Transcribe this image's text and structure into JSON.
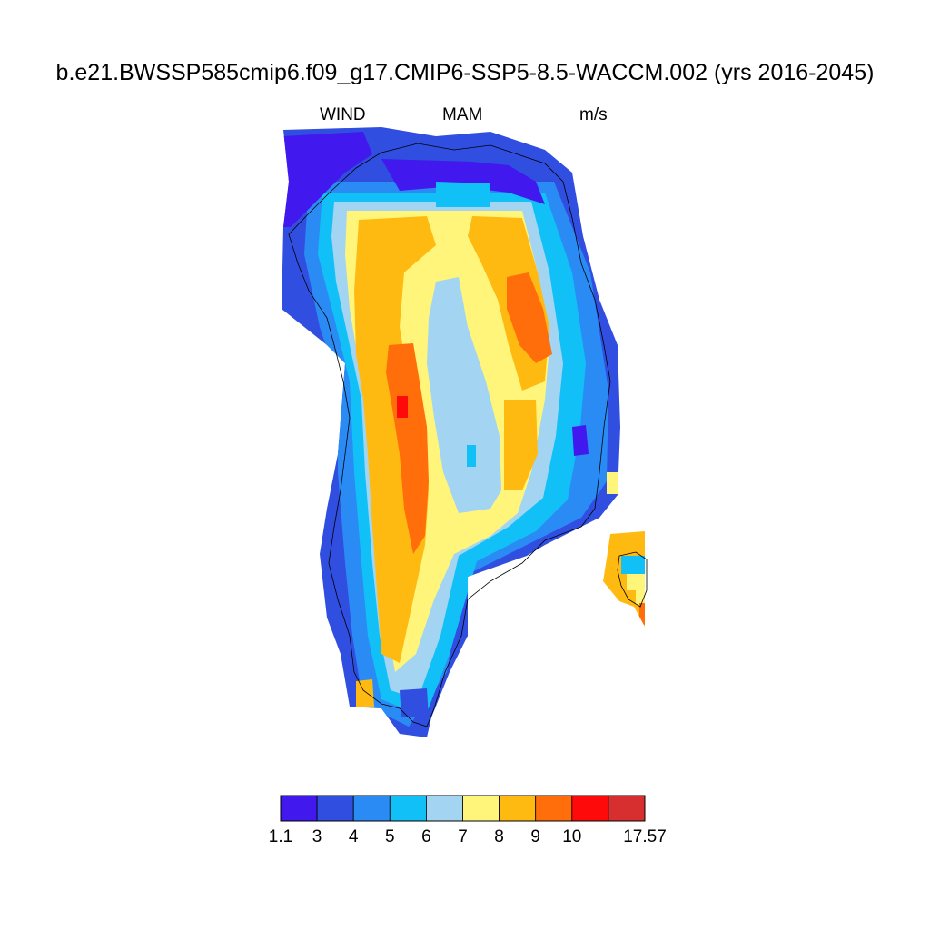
{
  "header": {
    "title": "b.e21.BWSSP585cmip6.f09_g17.CMIP6-SSP5-8.5-WACCM.002 (yrs 2016-2045)",
    "left_label": "WIND",
    "center_label": "MAM",
    "right_label": "m/s"
  },
  "colorbar": {
    "colors": [
      "#4119ee",
      "#304ee0",
      "#2a8bf5",
      "#12c0f8",
      "#a3d5f2",
      "#fff57b",
      "#ffba12",
      "#ff6e0a",
      "#ff0a0a",
      "#d72f2f"
    ],
    "tick_labels": [
      "1.1",
      "3",
      "4",
      "5",
      "6",
      "7",
      "8",
      "9",
      "10",
      "17.57"
    ]
  },
  "chart_data": {
    "type": "heatmap",
    "title": "b.e21.BWSSP585cmip6.f09_g17.CMIP6-SSP5-8.5-WACCM.002 (yrs 2016-2045)",
    "variable": "WIND",
    "season": "MAM",
    "units": "m/s",
    "levels": [
      1.1,
      3,
      4,
      5,
      6,
      7,
      8,
      9,
      10,
      17.57
    ],
    "min": 1.1,
    "max": 17.57,
    "pattern": "Greenland ice sheet: fastest winds (9–10+ m/s) in a central-western band and a north-eastern lobe; a 6–7 m/s core along the central spine; weaker 1.1–5 m/s winds along the coasts and in the far north"
  }
}
